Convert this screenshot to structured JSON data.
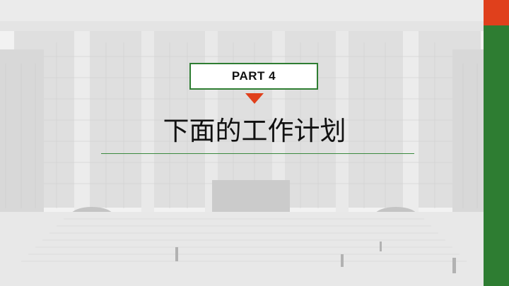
{
  "slide": {
    "part_label": "PART 4",
    "title": "下面的工作计划"
  },
  "colors": {
    "accent_red": "#e0401c",
    "accent_green": "#2e7d32",
    "rule_green": "#3a8a3e"
  },
  "background": {
    "icon": "campus-building-photo"
  }
}
